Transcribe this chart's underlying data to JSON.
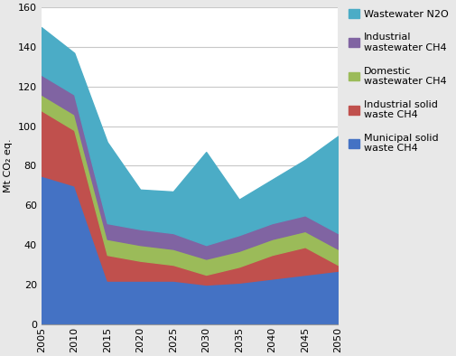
{
  "years": [
    2005,
    2010,
    2015,
    2020,
    2025,
    2030,
    2035,
    2040,
    2045,
    2050
  ],
  "series": {
    "Municipal solid waste CH4": {
      "values": [
        75,
        70,
        22,
        22,
        22,
        20,
        21,
        23,
        25,
        27
      ],
      "color": "#4472C4"
    },
    "Industrial solid waste CH4": {
      "values": [
        33,
        28,
        13,
        10,
        8,
        5,
        8,
        12,
        14,
        3
      ],
      "color": "#C0504D"
    },
    "Domestic wastewater CH4": {
      "values": [
        8,
        8,
        8,
        8,
        8,
        8,
        8,
        8,
        8,
        8
      ],
      "color": "#9BBB59"
    },
    "Industrial wastewater CH4": {
      "values": [
        10,
        10,
        8,
        8,
        8,
        7,
        8,
        8,
        8,
        8
      ],
      "color": "#8064A2"
    },
    "Wastewater N2O": {
      "values": [
        24,
        21,
        41,
        20,
        21,
        47,
        18,
        22,
        28,
        49
      ],
      "color": "#4BACC6"
    }
  },
  "ylabel": "Mt CO₂ eq.",
  "ylim": [
    0,
    160
  ],
  "yticks": [
    0,
    20,
    40,
    60,
    80,
    100,
    120,
    140,
    160
  ],
  "background_color": "#E8E8E8",
  "plot_background": "#FFFFFF",
  "grid_color": "#C8C8C8",
  "legend_labels": [
    "Wastewater N2O",
    "Industrial\nwastewater CH4",
    "Domestic\nwastewater CH4",
    "Industrial solid\nwaste CH4",
    "Municipal solid\nwaste CH4"
  ],
  "figsize": [
    5.05,
    3.94
  ],
  "dpi": 100
}
